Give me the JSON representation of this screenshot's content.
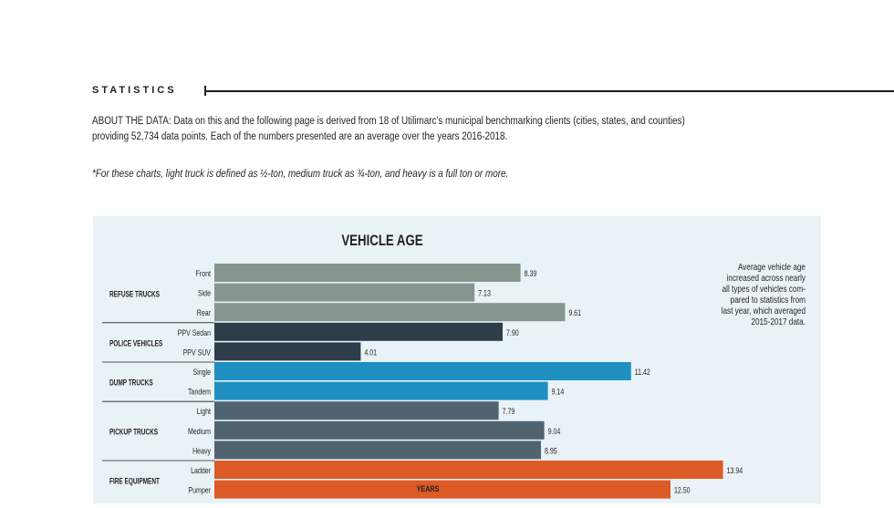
{
  "section": {
    "label": "STATISTICS"
  },
  "about": {
    "line1": "ABOUT THE DATA: Data on this and the following page is derived from 18 of Utilimarc's municipal benchmarking clients (cities, states, and counties)",
    "line2": "providing 52,734 data points. Each of the numbers presented are an average over the years 2016-2018."
  },
  "note": "*For these charts, light truck is defined as ½-ton, medium truck as ¾-ton, and heavy is a full ton or more.",
  "annotation": {
    "lines": [
      "Average vehicle age",
      "increased across nearly",
      "all types of vehicles com-",
      "pared to statistics from",
      "last year, which averaged",
      "2015-2017 data."
    ]
  },
  "chart_data": {
    "type": "bar",
    "orientation": "horizontal",
    "title": "VEHICLE AGE",
    "xlabel": "YEARS",
    "xlim": [
      0,
      14.5
    ],
    "grid": false,
    "groups": [
      {
        "name": "REFUSE TRUCKS",
        "color": "#86968e",
        "bars": [
          {
            "label": "Front",
            "value": 8.39,
            "value_label": "8.39"
          },
          {
            "label": "Side",
            "value": 7.13,
            "value_label": "7.13"
          },
          {
            "label": "Rear",
            "value": 9.61,
            "value_label": "9.61"
          }
        ]
      },
      {
        "name": "POLICE VEHICLES",
        "color": "#2e3d4a",
        "bars": [
          {
            "label": "PPV Sedan",
            "value": 7.9,
            "value_label": "7.90"
          },
          {
            "label": "PPV SUV",
            "value": 4.01,
            "value_label": "4.01"
          }
        ]
      },
      {
        "name": "DUMP TRUCKS",
        "color": "#1f8fc1",
        "bars": [
          {
            "label": "Single",
            "value": 11.42,
            "value_label": "11.42"
          },
          {
            "label": "Tandem",
            "value": 9.14,
            "value_label": "9.14"
          }
        ]
      },
      {
        "name": "PICKUP TRUCKS",
        "color": "#4f6470",
        "bars": [
          {
            "label": "Light",
            "value": 7.79,
            "value_label": "7.79"
          },
          {
            "label": "Medium",
            "value": 9.04,
            "value_label": "9.04"
          },
          {
            "label": "Heavy",
            "value": 8.95,
            "value_label": "8.95"
          }
        ]
      },
      {
        "name": "FIRE EQUIPMENT",
        "color": "#dc5a26",
        "bars": [
          {
            "label": "Ladder",
            "value": 13.94,
            "value_label": "13.94"
          },
          {
            "label": "Pumper",
            "value": 12.5,
            "value_label": "12.50"
          }
        ]
      }
    ]
  }
}
